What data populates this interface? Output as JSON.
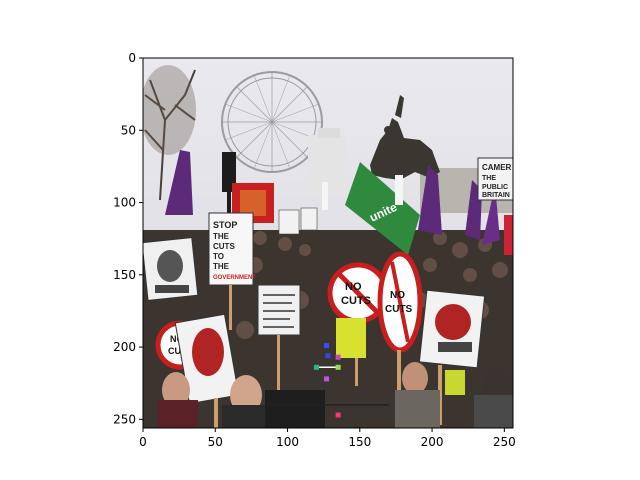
{
  "axes": {
    "xlim": [
      0,
      256
    ],
    "ylim": [
      256,
      0
    ],
    "xticks": [
      0,
      50,
      100,
      150,
      200,
      250
    ],
    "yticks": [
      0,
      50,
      100,
      150,
      200,
      250
    ],
    "xtick_labels": [
      "0",
      "50",
      "100",
      "150",
      "200",
      "250"
    ],
    "ytick_labels": [
      "0",
      "50",
      "100",
      "150",
      "200",
      "250"
    ]
  },
  "photo": {
    "description_tag": "protest-crowd",
    "signs": {
      "no_cuts_1": [
        "NO",
        "CUTS"
      ],
      "no_cuts_2": [
        "NO",
        "CUTS"
      ],
      "no_cuts_3": [
        "NO",
        "CUTS"
      ],
      "flag_text": "unite",
      "stop_sign": [
        "STOP",
        "THE",
        "CUTS",
        "TO",
        "THE",
        "GOVERNMENT"
      ],
      "camera_sign": [
        "CAMER",
        "THE",
        "PUBLIC",
        "BRITAIN"
      ]
    }
  },
  "overlay": {
    "keypoints": [
      {
        "x": 127,
        "y": 199,
        "color": "#3b4cff"
      },
      {
        "x": 128,
        "y": 206,
        "color": "#3344ee"
      },
      {
        "x": 135,
        "y": 207,
        "color": "#cc44cc"
      },
      {
        "x": 120,
        "y": 214,
        "color": "#22bb88"
      },
      {
        "x": 135,
        "y": 214,
        "color": "#99dd55"
      },
      {
        "x": 127,
        "y": 222,
        "color": "#bb55dd"
      },
      {
        "x": 135,
        "y": 247,
        "color": "#ff3377"
      }
    ],
    "lines": [
      {
        "x1": 120,
        "y1": 214,
        "x2": 135,
        "y2": 214,
        "color": "#ffffff"
      },
      {
        "x1": 87,
        "y1": 240,
        "x2": 170,
        "y2": 240,
        "color": "#222222"
      }
    ]
  }
}
